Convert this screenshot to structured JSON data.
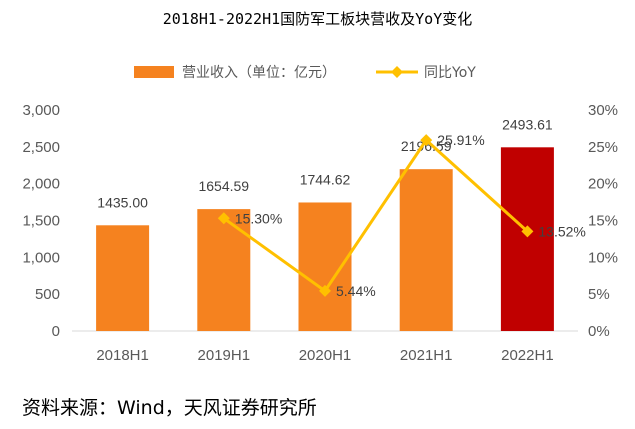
{
  "chart_data": {
    "type": "bar+line",
    "title": "2018H1-2022H1国防军工板块营收及YoY变化",
    "categories": [
      "2018H1",
      "2019H1",
      "2020H1",
      "2021H1",
      "2022H1"
    ],
    "series": [
      {
        "name": "营业收入（单位：亿元）",
        "type": "bar",
        "axis": "left",
        "values": [
          1435.0,
          1654.59,
          1744.62,
          2196.59,
          2493.61
        ],
        "labels": [
          "1435.00",
          "1654.59",
          "1744.62",
          "2196.59",
          "2493.61"
        ],
        "color": "#F5821F",
        "highlight_color": "#C00000",
        "highlight_index": 4
      },
      {
        "name": "同比YoY",
        "type": "line",
        "axis": "right",
        "values": [
          null,
          15.3,
          5.44,
          25.91,
          13.52
        ],
        "labels": [
          "",
          "15.30%",
          "5.44%",
          "25.91%",
          "13.52%"
        ],
        "color": "#FFC000"
      }
    ],
    "left_axis": {
      "range": [
        0,
        3000
      ],
      "ticks": [
        0,
        500,
        1000,
        1500,
        2000,
        2500,
        3000
      ],
      "tick_labels": [
        "0",
        "500",
        "1,000",
        "1,500",
        "2,000",
        "2,500",
        "3,000"
      ]
    },
    "right_axis": {
      "range": [
        0,
        30
      ],
      "ticks": [
        0,
        5,
        10,
        15,
        20,
        25,
        30
      ],
      "tick_labels": [
        "0%",
        "5%",
        "10%",
        "15%",
        "20%",
        "25%",
        "30%"
      ]
    },
    "grid": false,
    "legend_position": "top"
  },
  "source_note": "资料来源：Wind，天风证券研究所"
}
